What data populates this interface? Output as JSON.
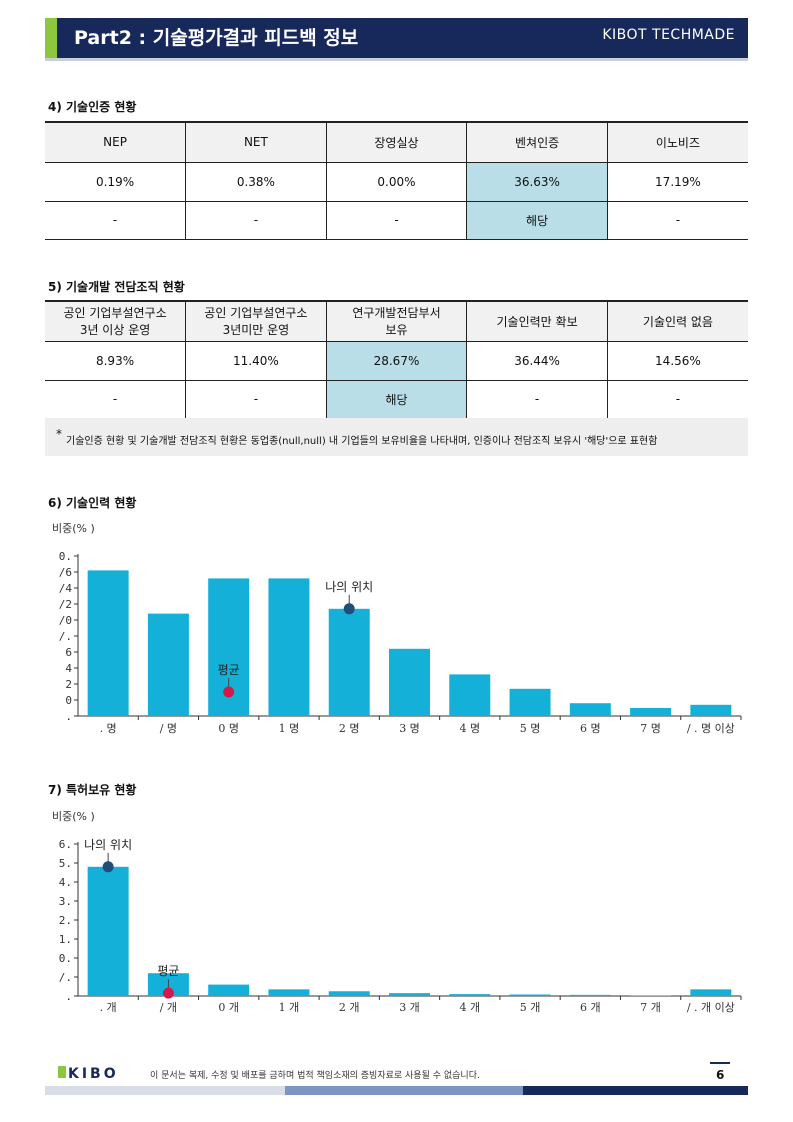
{
  "header": {
    "title": "Part2 : 기술평가결과 피드백 정보",
    "brand": "KIBOT TECHMADE"
  },
  "section4": {
    "title": "4)  기술인증 현황",
    "columns": [
      "NEP",
      "NET",
      "장영실상",
      "벤쳐인증",
      "이노비즈"
    ],
    "ratios": [
      "0.19%",
      "0.38%",
      "0.00%",
      "36.63%",
      "17.19%"
    ],
    "status": [
      "-",
      "-",
      "-",
      "해당",
      "-"
    ],
    "highlight_index": 3
  },
  "section5": {
    "title": "5)  기술개발 전담조직 현황",
    "columns": [
      [
        "공인 기업부설연구소",
        "3년 이상 운영"
      ],
      [
        "공인 기업부설연구소",
        "3년미만 운영"
      ],
      [
        "연구개발전담부서",
        "보유"
      ],
      [
        "기술인력만 확보"
      ],
      [
        "기술인력 없음"
      ]
    ],
    "ratios": [
      "8.93%",
      "11.40%",
      "28.67%",
      "36.44%",
      "14.56%"
    ],
    "status": [
      "-",
      "-",
      "해당",
      "-",
      "-"
    ],
    "highlight_index": 2
  },
  "note": {
    "star": "*",
    "text": "기술인증 현황 및 기술개발 전담조직 현황은 동업종(null,null) 내 기업들의 보유비율을 나타내며, 인증이나 전담조직 보유시 '해당'으로 표현함"
  },
  "section6": {
    "title": "6)  기술인력 현황",
    "ylabel": "비중(% )"
  },
  "section7": {
    "title": "7)  특허보유 현황",
    "ylabel": "비중(% )"
  },
  "chart_data": [
    {
      "type": "bar",
      "ylabel": "비중(% )",
      "yticks": [
        ".",
        "0",
        "2",
        "4",
        "6",
        "/.",
        "/0",
        "/2",
        "/4",
        "/6",
        "0."
      ],
      "ylim": [
        0,
        10
      ],
      "categories": [
        ". 명",
        "/ 명",
        "0 명",
        "1 명",
        "2 명",
        "3 명",
        "4 명",
        "5 명",
        "6 명",
        "7 명",
        "/ . 명 이상"
      ],
      "values": [
        9.1,
        6.4,
        8.6,
        8.6,
        6.7,
        4.2,
        2.6,
        1.7,
        0.8,
        0.5,
        0.7
      ],
      "bar_color": "#15b0d8",
      "markers": [
        {
          "label": "나의 위치",
          "category_index": 4,
          "value": 6.7,
          "color": "#1f4e79"
        },
        {
          "label": "평균",
          "category_index": 2,
          "value": 1.5,
          "color": "#d4184a"
        }
      ]
    },
    {
      "type": "bar",
      "ylabel": "비중(% )",
      "yticks": [
        ".",
        "/.",
        "0.",
        "1.",
        "2.",
        "3.",
        "4.",
        "5.",
        "6."
      ],
      "ylim": [
        0,
        8
      ],
      "categories": [
        ". 개",
        "/ 개",
        "0 개",
        "1 개",
        "2 개",
        "3 개",
        "4 개",
        "5 개",
        "6 개",
        "7 개",
        "/ . 개 이상"
      ],
      "values": [
        6.8,
        1.2,
        0.6,
        0.35,
        0.25,
        0.15,
        0.1,
        0.08,
        0.06,
        0.03,
        0.35
      ],
      "bar_color": "#15b0d8",
      "markers": [
        {
          "label": "나의 위치",
          "category_index": 0,
          "value": 6.8,
          "color": "#1f4e79"
        },
        {
          "label": "평균",
          "category_index": 1,
          "value": 0.15,
          "color": "#d4184a"
        }
      ]
    }
  ],
  "footer": {
    "logo": "KIBO",
    "disclaimer": "이 문서는 복제, 수정 및 배포를 금하며 법적 책임소재의 증빙자료로 사용될 수 없습니다.",
    "page": "6",
    "colors": [
      "#d9dde6",
      "#7d95c4",
      "#17285a"
    ]
  }
}
